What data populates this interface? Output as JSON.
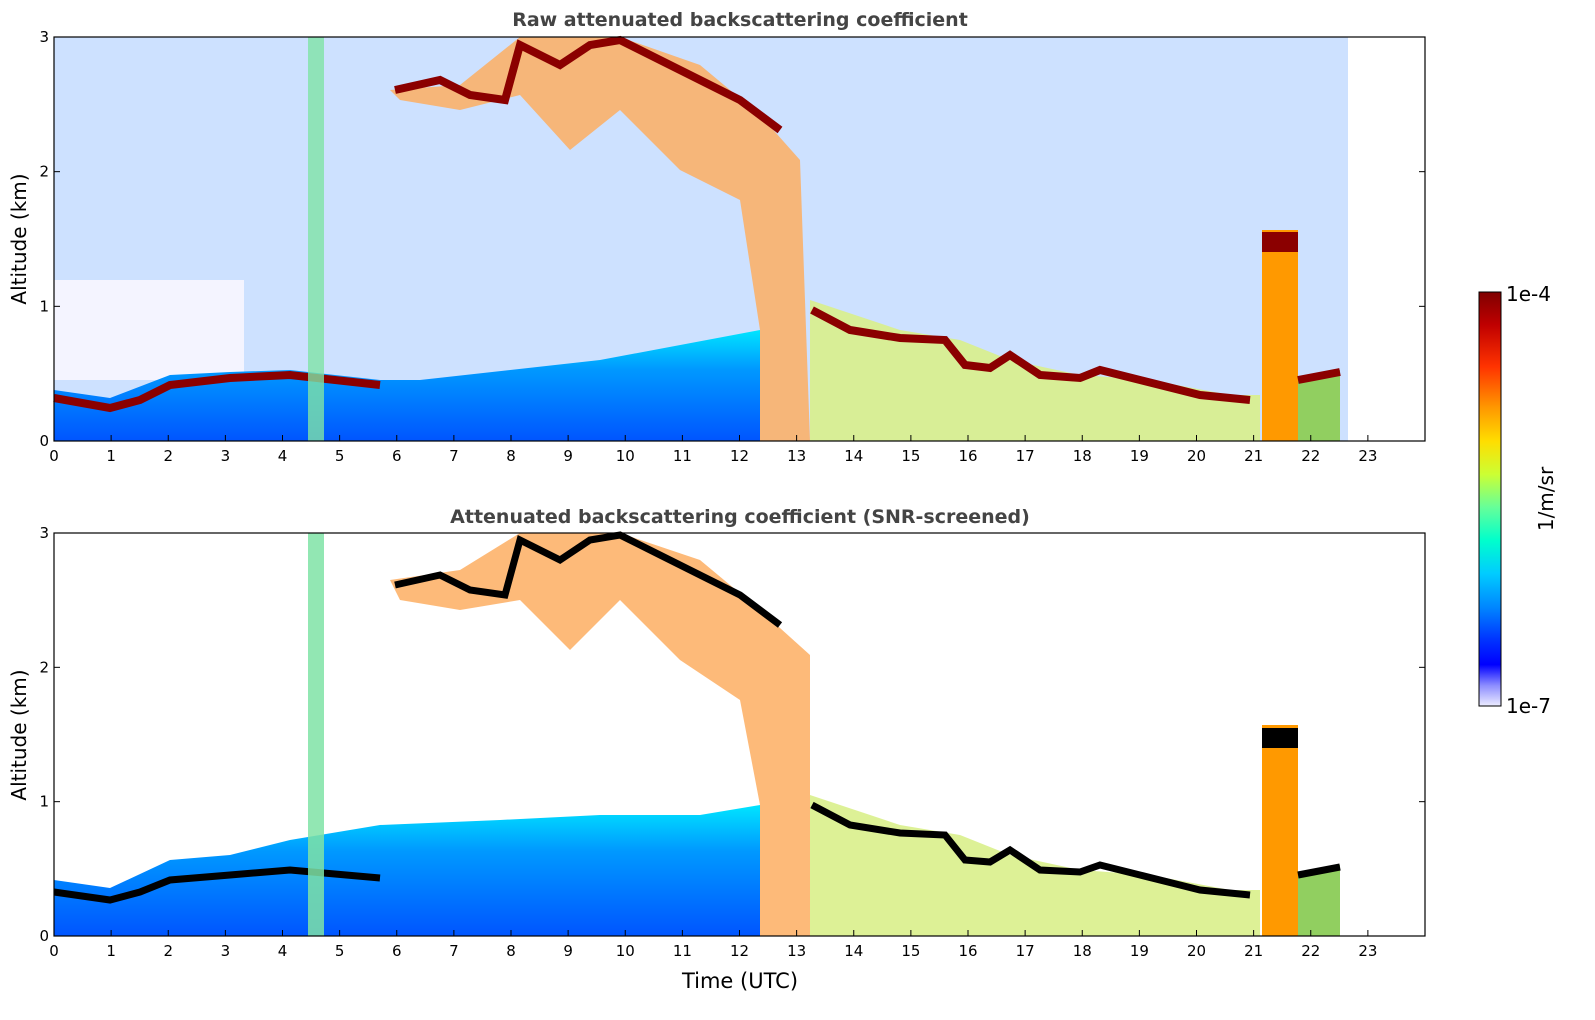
{
  "chart_data": [
    {
      "type": "heatmap",
      "title": "Raw attenuated backscattering coefficient",
      "xlabel": "",
      "ylabel": "Altitude (km)",
      "xlim": [
        0,
        24
      ],
      "ylim": [
        0,
        3
      ],
      "xticks": [
        "0",
        "1",
        "2",
        "3",
        "4",
        "5",
        "6",
        "7",
        "8",
        "9",
        "10",
        "11",
        "12",
        "13",
        "14",
        "15",
        "16",
        "17",
        "18",
        "19",
        "20",
        "21",
        "22",
        "23"
      ],
      "yticks": [
        "0",
        "1",
        "2",
        "3"
      ],
      "data_end_hour": 22.65,
      "boundary_layer_top_km": [
        [
          0,
          0.3
        ],
        [
          1,
          0.25
        ],
        [
          1.5,
          0.35
        ],
        [
          2,
          0.4
        ],
        [
          3,
          0.45
        ],
        [
          4,
          0.45
        ],
        [
          5,
          0.4
        ],
        [
          5.8,
          0.4
        ]
      ],
      "cloud_layer_km": [
        [
          6,
          2.6
        ],
        [
          7,
          2.55
        ],
        [
          8,
          2.9
        ],
        [
          9,
          2.95
        ],
        [
          10,
          2.95
        ],
        [
          11,
          2.75
        ],
        [
          12,
          2.45
        ],
        [
          12.7,
          2.3
        ]
      ],
      "low_cloud_km": [
        [
          13.3,
          0.95
        ],
        [
          14,
          0.8
        ],
        [
          15,
          0.75
        ],
        [
          16,
          0.55
        ],
        [
          17,
          0.45
        ],
        [
          18,
          0.45
        ],
        [
          19,
          0.4
        ],
        [
          20,
          0.35
        ],
        [
          21,
          0.3
        ],
        [
          21.3,
          1.5
        ],
        [
          21.7,
          1.45
        ],
        [
          22,
          0.45
        ],
        [
          22.6,
          0.5
        ]
      ]
    },
    {
      "type": "heatmap",
      "title": "Attenuated backscattering coefficient (SNR-screened)",
      "xlabel": "Time (UTC)",
      "ylabel": "Altitude (km)",
      "xlim": [
        0,
        24
      ],
      "ylim": [
        0,
        3
      ],
      "xticks": [
        "0",
        "1",
        "2",
        "3",
        "4",
        "5",
        "6",
        "7",
        "8",
        "9",
        "10",
        "11",
        "12",
        "13",
        "14",
        "15",
        "16",
        "17",
        "18",
        "19",
        "20",
        "21",
        "22",
        "23"
      ],
      "yticks": [
        "0",
        "1",
        "2",
        "3"
      ],
      "data_end_hour": 22.65
    }
  ],
  "colorbar": {
    "label": "1/m/sr",
    "max_label": "1e-4",
    "min_label": "1e-7",
    "colors": [
      "#7f0000",
      "#d7301f",
      "#f46d43",
      "#fdae61",
      "#fee08b",
      "#d9ef8b",
      "#91cf60",
      "#1a9850",
      "#00ffff",
      "#33ccff",
      "#0099ff",
      "#0033ff",
      "#0000ff",
      "#8888ff",
      "#e8e8ff"
    ]
  }
}
